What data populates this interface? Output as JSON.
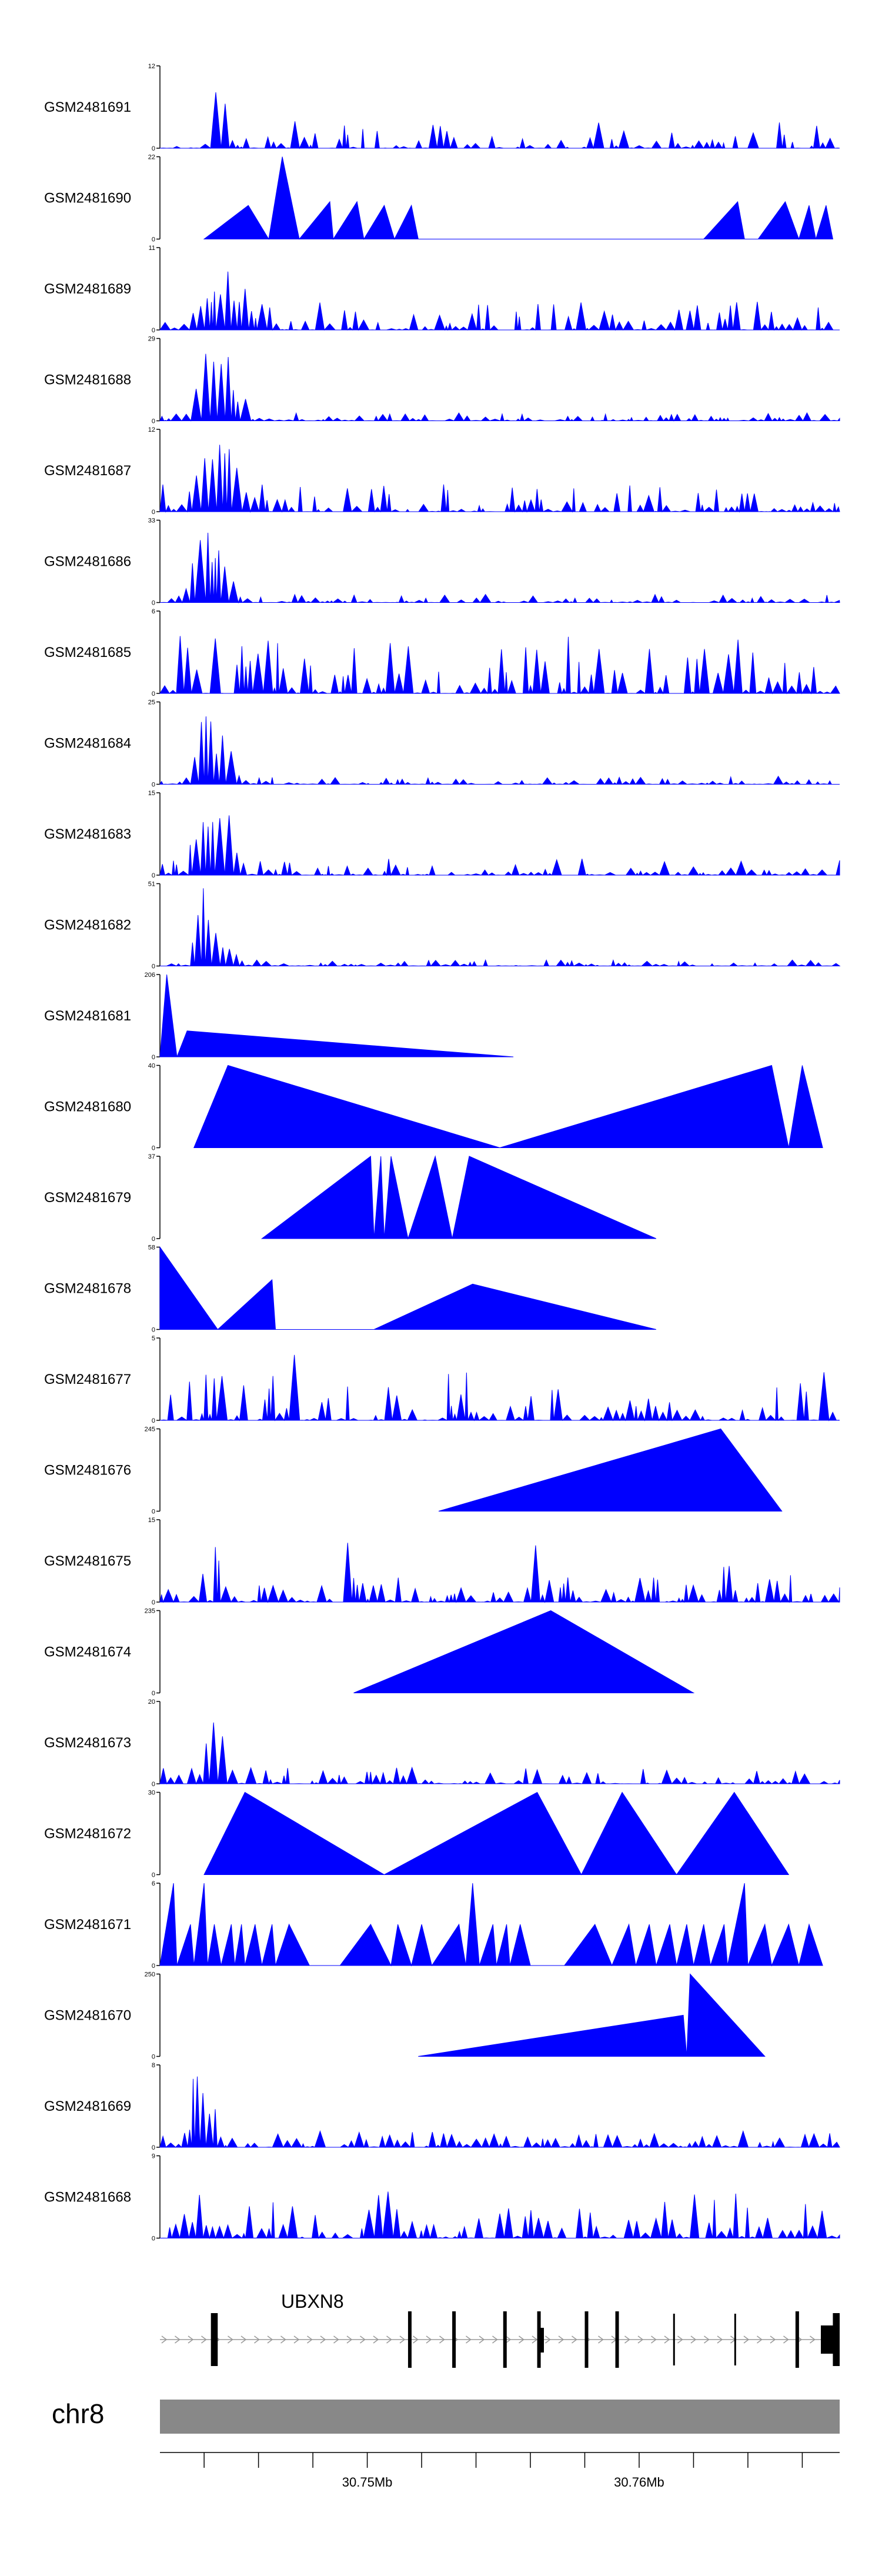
{
  "chart_data": {
    "type": "area",
    "title": "",
    "chromosome": "chr8",
    "gene": "UBXN8",
    "x_range_mb": [
      30.7425,
      30.7672
    ],
    "x_ticks": [
      "30.75Mb",
      "30.76Mb"
    ],
    "tracks": [
      {
        "name": "GSM2481691",
        "ymax": 12,
        "shape": "dense",
        "gaps": 0.15,
        "bumps": [
          [
            0.08,
            12,
            0.009
          ]
        ]
      },
      {
        "name": "GSM2481690",
        "ymax": 22,
        "shape": "tri",
        "points": [
          [
            0.065,
            0
          ],
          [
            0.13,
            9
          ],
          [
            0.16,
            0
          ],
          [
            0.18,
            22
          ],
          [
            0.205,
            0
          ],
          [
            0.25,
            10
          ],
          [
            0.255,
            0
          ],
          [
            0.29,
            10
          ],
          [
            0.3,
            0
          ],
          [
            0.33,
            9
          ],
          [
            0.345,
            0
          ],
          [
            0.37,
            9
          ],
          [
            0.38,
            0
          ],
          [
            0.5,
            0
          ],
          [
            0.55,
            0
          ],
          [
            0.7,
            0
          ],
          [
            0.8,
            0
          ],
          [
            0.85,
            10
          ],
          [
            0.86,
            0
          ],
          [
            0.88,
            0
          ],
          [
            0.92,
            10
          ],
          [
            0.94,
            0
          ],
          [
            0.955,
            9
          ],
          [
            0.965,
            0
          ],
          [
            0.98,
            9
          ],
          [
            0.99,
            0
          ]
        ]
      },
      {
        "name": "GSM2481689",
        "ymax": 11,
        "shape": "dense",
        "gaps": 0.1,
        "bumps": [
          [
            0.09,
            7,
            0.03
          ],
          [
            0.095,
            11,
            0.006
          ],
          [
            0.12,
            8,
            0.005
          ]
        ]
      },
      {
        "name": "GSM2481688",
        "ymax": 29,
        "shape": "dense",
        "gaps": 0.05,
        "scale": 0.1,
        "bumps": [
          [
            0.07,
            29,
            0.018
          ],
          [
            0.095,
            24,
            0.012
          ],
          [
            0.12,
            10,
            0.006
          ]
        ]
      },
      {
        "name": "GSM2481687",
        "ymax": 12,
        "shape": "dense",
        "gaps": 0.1,
        "bumps": [
          [
            0.065,
            10,
            0.02
          ],
          [
            0.09,
            12,
            0.015
          ],
          [
            0.11,
            8,
            0.008
          ]
        ]
      },
      {
        "name": "GSM2481686",
        "ymax": 33,
        "shape": "dense",
        "gaps": 0.05,
        "scale": 0.1,
        "bumps": [
          [
            0.06,
            33,
            0.015
          ],
          [
            0.085,
            25,
            0.012
          ],
          [
            0.1,
            14,
            0.008
          ]
        ]
      },
      {
        "name": "GSM2481685",
        "ymax": 6,
        "shape": "dense",
        "gaps": 0.08,
        "scale": 0.7,
        "bumps": [
          [
            0.04,
            6,
            0.005
          ],
          [
            0.14,
            5,
            0.005
          ],
          [
            0.5,
            4,
            0.004
          ],
          [
            0.82,
            4,
            0.003
          ]
        ]
      },
      {
        "name": "GSM2481684",
        "ymax": 25,
        "shape": "dense",
        "gaps": 0.05,
        "scale": 0.1,
        "bumps": [
          [
            0.062,
            25,
            0.014
          ],
          [
            0.09,
            18,
            0.012
          ],
          [
            0.1,
            10,
            0.008
          ]
        ]
      },
      {
        "name": "GSM2481683",
        "ymax": 15,
        "shape": "dense",
        "gaps": 0.1,
        "scale": 0.2,
        "bumps": [
          [
            0.06,
            14,
            0.015
          ],
          [
            0.085,
            15,
            0.015
          ],
          [
            0.11,
            6,
            0.006
          ]
        ]
      },
      {
        "name": "GSM2481682",
        "ymax": 51,
        "shape": "dense",
        "gaps": 0.05,
        "scale": 0.08,
        "bumps": [
          [
            0.06,
            51,
            0.01
          ],
          [
            0.075,
            30,
            0.012
          ],
          [
            0.1,
            15,
            0.01
          ]
        ]
      },
      {
        "name": "GSM2481681",
        "ymax": 206,
        "shape": "tri",
        "points": [
          [
            0.0,
            0
          ],
          [
            0.01,
            206
          ],
          [
            0.025,
            0
          ],
          [
            0.04,
            65
          ],
          [
            0.52,
            0
          ]
        ]
      },
      {
        "name": "GSM2481680",
        "ymax": 40,
        "shape": "tri",
        "points": [
          [
            0.05,
            0
          ],
          [
            0.1,
            40
          ],
          [
            0.5,
            0
          ],
          [
            0.9,
            40
          ],
          [
            0.925,
            0
          ],
          [
            0.945,
            40
          ],
          [
            0.975,
            0
          ]
        ]
      },
      {
        "name": "GSM2481679",
        "ymax": 37,
        "shape": "tri",
        "points": [
          [
            0.15,
            0
          ],
          [
            0.31,
            37
          ],
          [
            0.315,
            0
          ],
          [
            0.325,
            37
          ],
          [
            0.33,
            0
          ],
          [
            0.34,
            37
          ],
          [
            0.365,
            0
          ],
          [
            0.405,
            37
          ],
          [
            0.43,
            0
          ],
          [
            0.455,
            37
          ],
          [
            0.73,
            0
          ]
        ]
      },
      {
        "name": "GSM2481678",
        "ymax": 58,
        "shape": "tri",
        "points": [
          [
            0.0,
            58
          ],
          [
            0.085,
            0
          ],
          [
            0.165,
            35
          ],
          [
            0.17,
            0
          ],
          [
            0.315,
            0
          ],
          [
            0.46,
            32
          ],
          [
            0.73,
            0
          ]
        ]
      },
      {
        "name": "GSM2481677",
        "ymax": 5,
        "shape": "dense",
        "gaps": 0.05,
        "scale": 0.6,
        "bumps": [
          [
            0.08,
            5,
            0.004
          ],
          [
            0.19,
            4,
            0.004
          ],
          [
            0.97,
            4,
            0.003
          ]
        ]
      },
      {
        "name": "GSM2481676",
        "ymax": 245,
        "shape": "tri",
        "points": [
          [
            0.41,
            0
          ],
          [
            0.825,
            245
          ],
          [
            0.915,
            0
          ]
        ]
      },
      {
        "name": "GSM2481675",
        "ymax": 15,
        "shape": "dense",
        "gaps": 0.08,
        "scale": 0.35,
        "bumps": [
          [
            0.08,
            15,
            0.004
          ],
          [
            0.27,
            11,
            0.004
          ],
          [
            0.545,
            11,
            0.004
          ],
          [
            0.83,
            9,
            0.004
          ]
        ]
      },
      {
        "name": "GSM2481674",
        "ymax": 235,
        "shape": "tri",
        "points": [
          [
            0.285,
            0
          ],
          [
            0.575,
            235
          ],
          [
            0.785,
            0
          ]
        ]
      },
      {
        "name": "GSM2481673",
        "ymax": 20,
        "shape": "dense",
        "gaps": 0.2,
        "scale": 0.2,
        "bumps": [
          [
            0.07,
            20,
            0.008
          ],
          [
            0.085,
            12,
            0.01
          ],
          [
            0.935,
            13,
            0.003
          ]
        ]
      },
      {
        "name": "GSM2481672",
        "ymax": 30,
        "shape": "tri",
        "points": [
          [
            0.065,
            0
          ],
          [
            0.125,
            30
          ],
          [
            0.33,
            0
          ],
          [
            0.555,
            30
          ],
          [
            0.62,
            0
          ],
          [
            0.68,
            30
          ],
          [
            0.76,
            0
          ],
          [
            0.845,
            30
          ],
          [
            0.925,
            0
          ]
        ]
      },
      {
        "name": "GSM2481671",
        "ymax": 6,
        "shape": "tri",
        "points": [
          [
            0.0,
            0
          ],
          [
            0.02,
            6
          ],
          [
            0.025,
            0
          ],
          [
            0.045,
            3
          ],
          [
            0.05,
            0
          ],
          [
            0.065,
            6
          ],
          [
            0.07,
            0
          ],
          [
            0.08,
            3
          ],
          [
            0.09,
            0
          ],
          [
            0.105,
            3
          ],
          [
            0.11,
            0
          ],
          [
            0.12,
            3
          ],
          [
            0.125,
            0
          ],
          [
            0.14,
            3
          ],
          [
            0.15,
            0
          ],
          [
            0.165,
            3
          ],
          [
            0.17,
            0
          ],
          [
            0.19,
            3
          ],
          [
            0.22,
            0
          ],
          [
            0.265,
            0
          ],
          [
            0.31,
            3
          ],
          [
            0.34,
            0
          ],
          [
            0.35,
            3
          ],
          [
            0.37,
            0
          ],
          [
            0.385,
            3
          ],
          [
            0.4,
            0
          ],
          [
            0.44,
            3
          ],
          [
            0.45,
            0
          ],
          [
            0.46,
            6
          ],
          [
            0.47,
            0
          ],
          [
            0.49,
            3
          ],
          [
            0.495,
            0
          ],
          [
            0.51,
            3
          ],
          [
            0.515,
            0
          ],
          [
            0.53,
            3
          ],
          [
            0.545,
            0
          ],
          [
            0.595,
            0
          ],
          [
            0.64,
            3
          ],
          [
            0.665,
            0
          ],
          [
            0.69,
            3
          ],
          [
            0.7,
            0
          ],
          [
            0.72,
            3
          ],
          [
            0.73,
            0
          ],
          [
            0.75,
            3
          ],
          [
            0.76,
            0
          ],
          [
            0.775,
            3
          ],
          [
            0.785,
            0
          ],
          [
            0.8,
            3
          ],
          [
            0.81,
            0
          ],
          [
            0.83,
            3
          ],
          [
            0.835,
            0
          ],
          [
            0.86,
            6
          ],
          [
            0.865,
            0
          ],
          [
            0.89,
            3
          ],
          [
            0.9,
            0
          ],
          [
            0.925,
            3
          ],
          [
            0.94,
            0
          ],
          [
            0.955,
            3
          ],
          [
            0.975,
            0
          ]
        ]
      },
      {
        "name": "GSM2481670",
        "ymax": 250,
        "shape": "tri",
        "points": [
          [
            0.38,
            0
          ],
          [
            0.77,
            125
          ],
          [
            0.775,
            0
          ],
          [
            0.78,
            250
          ],
          [
            0.89,
            0
          ]
        ]
      },
      {
        "name": "GSM2481669",
        "ymax": 8,
        "shape": "dense",
        "gaps": 0.05,
        "scale": 0.2,
        "bumps": [
          [
            0.05,
            8,
            0.006
          ],
          [
            0.06,
            6,
            0.01
          ],
          [
            0.075,
            7,
            0.005
          ]
        ]
      },
      {
        "name": "GSM2481668",
        "ymax": 9,
        "shape": "dense",
        "gaps": 0.05,
        "scale": 0.55,
        "bumps": [
          [
            0.32,
            9,
            0.003
          ],
          [
            0.325,
            9,
            0.003
          ]
        ]
      }
    ],
    "gene_model": {
      "label": "UBXN8",
      "strand": "+",
      "intron_range": [
        0.0,
        1.0
      ],
      "exons": [
        [
          0.075,
          0.085
        ],
        [
          0.365,
          0.37
        ],
        [
          0.43,
          0.435
        ],
        [
          0.505,
          0.51
        ],
        [
          0.555,
          0.56
        ],
        [
          0.625,
          0.635
        ],
        [
          0.67,
          0.675
        ],
        [
          0.935,
          0.94
        ],
        [
          0.99,
          1.0
        ]
      ],
      "thin_exons": [
        0.755,
        0.845
      ]
    },
    "ideogram_ticks": [
      0.065,
      0.145,
      0.225,
      0.305,
      0.385,
      0.465,
      0.545,
      0.625,
      0.705,
      0.785,
      0.865,
      0.945
    ],
    "axis_label_positions": {
      "30.75Mb": 0.305,
      "30.76Mb": 0.705
    }
  }
}
